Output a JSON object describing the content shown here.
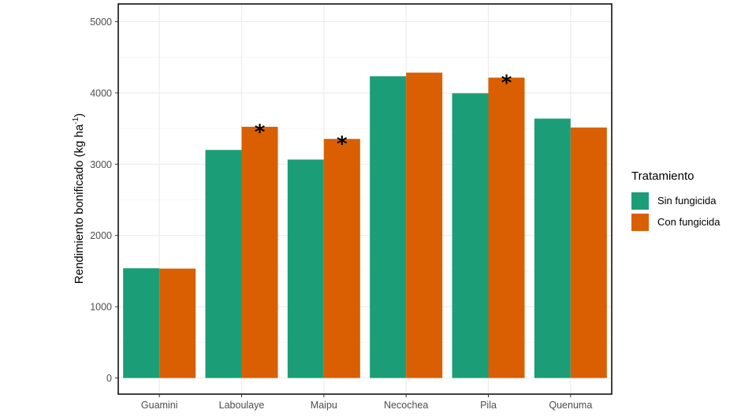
{
  "chart_data": {
    "type": "bar",
    "xlabel": "",
    "ylabel": {
      "main": "Rendimiento bonificado (kg ha",
      "sup": "-1",
      "close": ")"
    },
    "categories": [
      "Guamini",
      "Laboulaye",
      "Maipu",
      "Necochea",
      "Pila",
      "Quenuma"
    ],
    "series": [
      {
        "name": "Sin fungicida",
        "color": "#1b9e77",
        "values": [
          1540,
          3200,
          3065,
          4235,
          3995,
          3640
        ]
      },
      {
        "name": "Con fungicida",
        "color": "#d95f02",
        "values": [
          1535,
          3525,
          3355,
          4285,
          4215,
          3515
        ]
      }
    ],
    "significance": {
      "marker": "*",
      "series": "Con fungicida",
      "categories": [
        "Laboulaye",
        "Maipu",
        "Pila"
      ]
    },
    "ylim": [
      0,
      5200
    ],
    "yticks": [
      0,
      1000,
      2000,
      3000,
      4000,
      5000
    ],
    "grid": true,
    "legend": {
      "title": "Tratamiento",
      "placement": "right"
    }
  }
}
